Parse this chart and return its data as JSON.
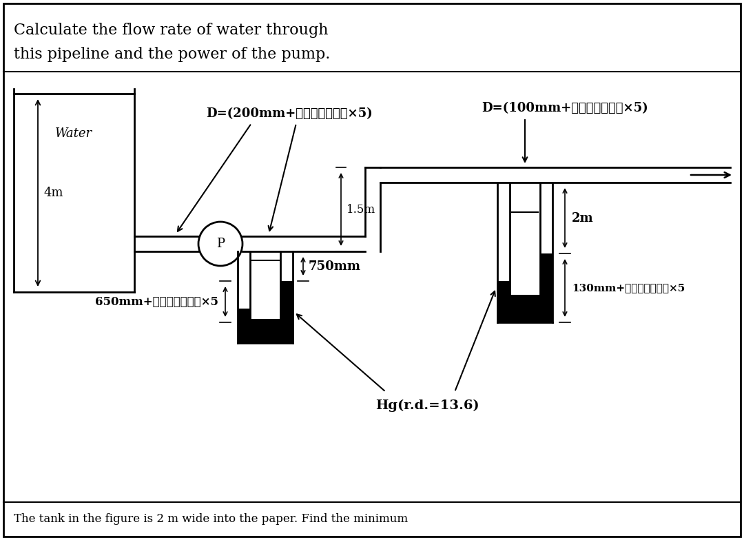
{
  "title_line1": "Calculate the flow rate of water through",
  "title_line2": "this pipeline and the power of the pump.",
  "bg_color": "#ffffff",
  "label_D200": "D=(200mm+التسلسل×5)",
  "label_D100": "D=(100mm+التسلسل×5)",
  "label_water": "Water",
  "label_4m": "4m",
  "label_1p5m": "1.5m",
  "label_2m": "2m",
  "label_750mm": "750mm",
  "label_130mm": "130mm+التسلسل×5",
  "label_650mm": "650mm+التسلسل×5",
  "label_hg": "Hg(r.d.=13.6)",
  "label_P": "P",
  "bottom_text": "The tank in the figure is 2 m wide into the paper. Find the minimum"
}
